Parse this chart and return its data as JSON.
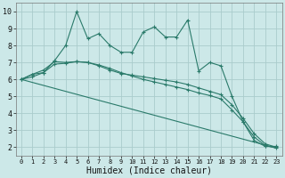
{
  "xlabel": "Humidex (Indice chaleur)",
  "background_color": "#cce8e8",
  "grid_color": "#aacccc",
  "line_color": "#2a7a6a",
  "xlim": [
    -0.5,
    23.5
  ],
  "ylim": [
    1.5,
    10.5
  ],
  "xticks": [
    0,
    1,
    2,
    3,
    4,
    5,
    6,
    7,
    8,
    9,
    10,
    11,
    12,
    13,
    14,
    15,
    16,
    17,
    18,
    19,
    20,
    21,
    22,
    23
  ],
  "yticks": [
    2,
    3,
    4,
    5,
    6,
    7,
    8,
    9,
    10
  ],
  "line1_x": [
    0,
    1,
    2,
    3,
    4,
    5,
    6,
    7,
    8,
    9,
    10,
    11,
    12,
    13,
    14,
    15,
    16,
    17,
    18,
    19,
    20,
    21,
    22,
    23
  ],
  "line1_y": [
    6.0,
    6.3,
    6.4,
    7.1,
    8.0,
    10.0,
    8.4,
    8.7,
    8.0,
    7.6,
    7.6,
    8.8,
    9.1,
    8.5,
    8.5,
    9.5,
    6.5,
    7.0,
    6.8,
    5.0,
    3.5,
    2.4,
    2.05,
    2.05
  ],
  "line2_x": [
    0,
    1,
    2,
    3,
    4,
    5,
    6,
    7,
    8,
    9,
    10,
    11,
    12,
    13,
    14,
    15,
    16,
    17,
    18,
    19,
    20,
    21,
    22,
    23
  ],
  "line2_y": [
    6.0,
    6.3,
    6.55,
    7.05,
    7.0,
    7.05,
    7.0,
    6.8,
    6.55,
    6.35,
    6.25,
    6.15,
    6.05,
    5.95,
    5.85,
    5.7,
    5.5,
    5.3,
    5.1,
    4.5,
    3.7,
    2.8,
    2.2,
    2.0
  ],
  "line3_x": [
    0,
    1,
    2,
    3,
    4,
    5,
    6,
    7,
    8,
    9,
    10,
    11,
    12,
    13,
    14,
    15,
    16,
    17,
    18,
    19,
    20,
    21,
    22,
    23
  ],
  "line3_y": [
    6.0,
    6.15,
    6.4,
    6.9,
    6.95,
    7.05,
    7.0,
    6.85,
    6.65,
    6.4,
    6.2,
    6.0,
    5.85,
    5.7,
    5.55,
    5.4,
    5.2,
    5.05,
    4.85,
    4.2,
    3.5,
    2.6,
    2.1,
    1.95
  ],
  "line4_x": [
    0,
    23
  ],
  "line4_y": [
    6.0,
    1.95
  ],
  "xlabel_fontsize": 7,
  "xtick_fontsize": 5,
  "ytick_fontsize": 6
}
